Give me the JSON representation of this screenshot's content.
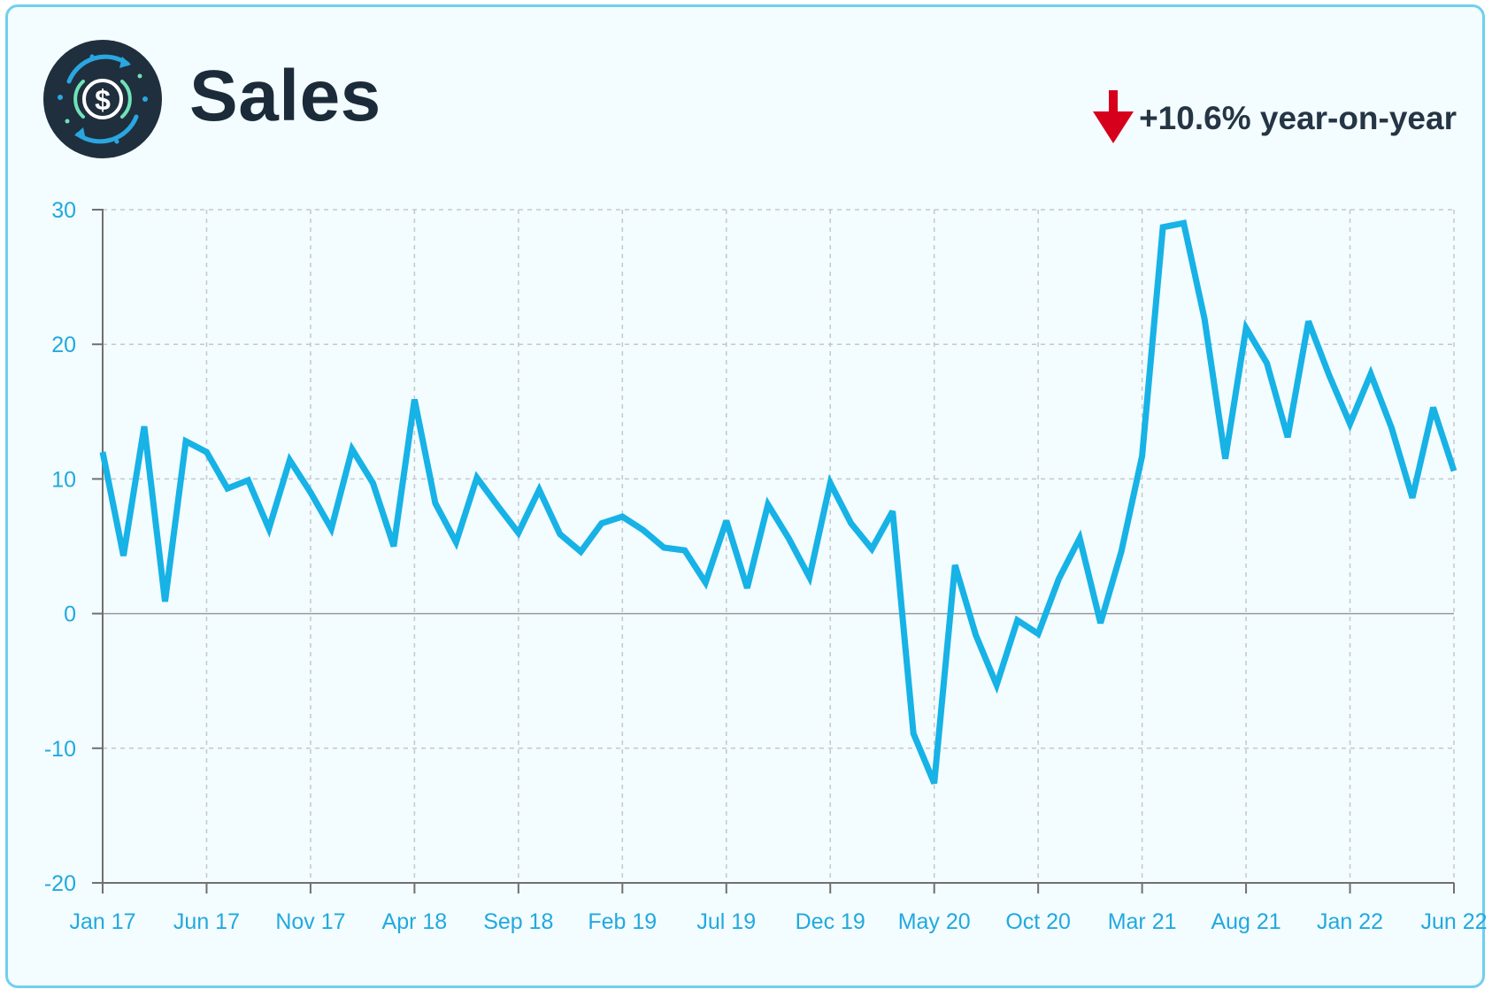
{
  "header": {
    "title": "Sales",
    "yoy_text": "+10.6% year-on-year"
  },
  "icons": {
    "logo": "dollar-cycle-icon",
    "trend": "arrow-down-icon"
  },
  "colors": {
    "line": "#17b2e6",
    "tick_text": "#21a9df",
    "title": "#1c2b3a",
    "arrow": "#d6001c",
    "border": "#6fd0ee",
    "background": "#f3fcfe",
    "logo_bg": "#1f2f3e"
  },
  "chart_data": {
    "type": "line",
    "title": "Sales",
    "xlabel": "",
    "ylabel": "",
    "ylim": [
      -20,
      30
    ],
    "yticks": [
      -20,
      -10,
      0,
      10,
      20,
      30
    ],
    "xtick_labels": [
      "Jan 17",
      "Jun 17",
      "Nov 17",
      "Apr 18",
      "Sep 18",
      "Feb 19",
      "Jul 19",
      "Dec 19",
      "May 20",
      "Oct 20",
      "Mar 21",
      "Aug 21",
      "Jan 22",
      "Jun 22"
    ],
    "grid": true,
    "series": [
      {
        "values": [
          12.0,
          4.3,
          13.9,
          0.9,
          12.8,
          12.0,
          9.3,
          9.9,
          6.3,
          11.4,
          9.0,
          6.3,
          12.2,
          9.7,
          5.0,
          15.9,
          8.2,
          5.3,
          10.1,
          8.0,
          6.0,
          9.2,
          5.9,
          4.6,
          6.7,
          7.2,
          6.2,
          4.9,
          4.7,
          2.3,
          6.9,
          1.9,
          8.1,
          5.6,
          2.7,
          9.7,
          6.7,
          4.8,
          7.6,
          -8.9,
          -12.6,
          3.6,
          -1.6,
          -5.3,
          -0.5,
          -1.5,
          2.6,
          5.6,
          -0.7,
          4.6,
          11.7,
          28.7,
          29.0,
          21.9,
          11.5,
          21.2,
          18.6,
          13.1,
          21.7,
          17.7,
          14.1,
          17.8,
          13.8,
          8.6,
          15.3,
          10.6
        ]
      }
    ]
  }
}
